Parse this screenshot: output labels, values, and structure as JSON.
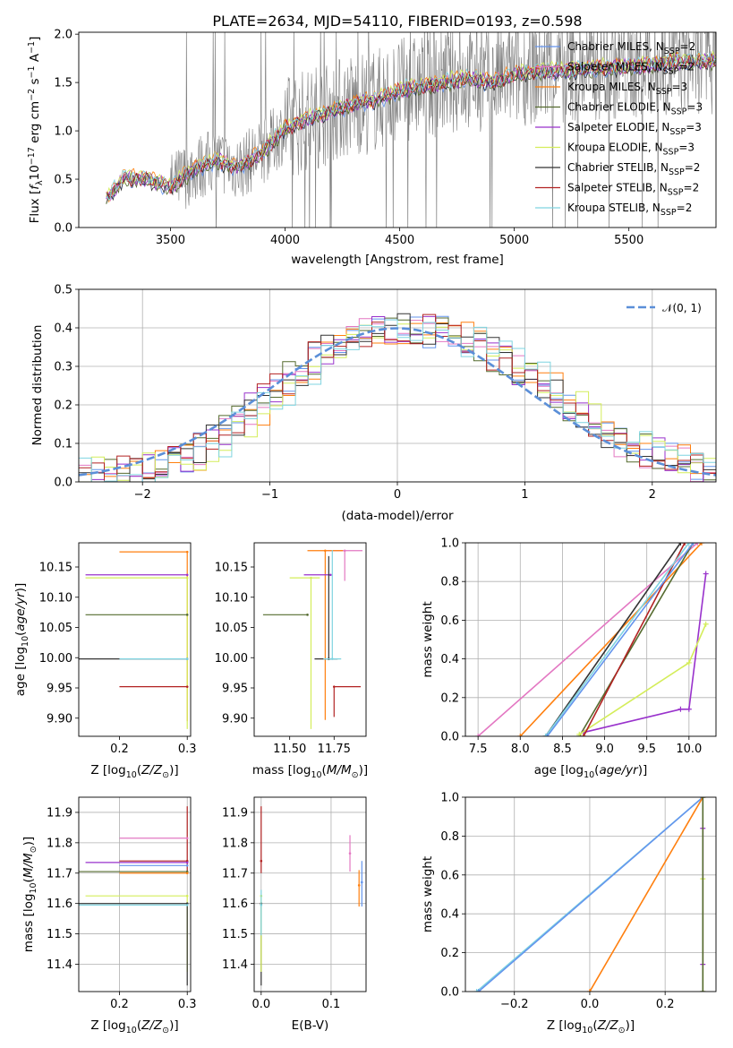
{
  "title": "PLATE=2634, MJD=54110, FIBERID=0193, z=0.598",
  "colors": {
    "Chabrier MILES": "#6495ed",
    "Salpeter MILES": "#e377c2",
    "Kroupa MILES": "#ff7f0e",
    "Chabrier ELODIE": "#556b2f",
    "Salpeter ELODIE": "#9932cc",
    "Kroupa ELODIE": "#d4ed5a",
    "Chabrier STELIB": "#333333",
    "Salpeter STELIB": "#b22222",
    "Kroupa STELIB": "#7fd4e0",
    "data": "#7f7f7f",
    "gauss": "#5b8fd8"
  },
  "chart_data": [
    {
      "id": "spectrum",
      "type": "line",
      "title": "PLATE=2634, MJD=54110, FIBERID=0193, z=0.598",
      "xlabel": "wavelength [Angstrom, rest frame]",
      "ylabel": "Flux [f_λ 10^{-17} erg cm^{-2} s^{-1} A^{-1}]",
      "xlim": [
        3100,
        5880
      ],
      "ylim": [
        0,
        2.02
      ],
      "xticks": [
        3500,
        4000,
        4500,
        5000,
        5500
      ],
      "yticks": [
        0.0,
        0.5,
        1.0,
        1.5,
        2.0
      ],
      "ytick_labels": [
        "0.0",
        "0.5",
        "1.0",
        "1.5",
        "2.0"
      ],
      "legend_loc": "upper right",
      "legend": [
        "Chabrier MILES, N_SSP=2",
        "Salpeter MILES, N_SSP=2",
        "Kroupa MILES, N_SSP=3",
        "Chabrier ELODIE, N_SSP=3",
        "Salpeter ELODIE, N_SSP=3",
        "Kroupa ELODIE, N_SSP=3",
        "Chabrier STELIB, N_SSP=2",
        "Salpeter STELIB, N_SSP=2",
        "Kroupa STELIB, N_SSP=2"
      ],
      "model_curve": {
        "x": [
          3220,
          3300,
          3400,
          3500,
          3600,
          3700,
          3800,
          3900,
          4000,
          4100,
          4200,
          4300,
          4400,
          4500,
          4600,
          4700,
          4800,
          4900,
          5000,
          5100,
          5200,
          5300,
          5400,
          5500,
          5600,
          5700
        ],
        "y": [
          0.3,
          0.52,
          0.5,
          0.42,
          0.6,
          0.7,
          0.62,
          0.78,
          1.02,
          1.12,
          1.2,
          1.28,
          1.32,
          1.42,
          1.46,
          1.5,
          1.55,
          1.5,
          1.58,
          1.62,
          1.62,
          1.64,
          1.65,
          1.66,
          1.68,
          1.72
        ]
      }
    },
    {
      "id": "residuals",
      "type": "line",
      "xlabel": "(data-model)/error",
      "ylabel": "Normed distribution",
      "xlim": [
        -2.5,
        2.5
      ],
      "ylim": [
        0,
        0.5
      ],
      "xticks": [
        -2,
        -1,
        0,
        1,
        2
      ],
      "xtick_labels": [
        "−2",
        "−1",
        "0",
        "1",
        "2"
      ],
      "yticks": [
        0.0,
        0.1,
        0.2,
        0.3,
        0.4,
        0.5
      ],
      "ytick_labels": [
        "0.0",
        "0.1",
        "0.2",
        "0.3",
        "0.4",
        "0.5"
      ],
      "legend": [
        "𝒩(0, 1)"
      ],
      "hist_bins": [
        -2.5,
        -2.4,
        -2.3,
        -2.2,
        -2.1,
        -2.0,
        -1.9,
        -1.8,
        -1.7,
        -1.6,
        -1.5,
        -1.4,
        -1.3,
        -1.2,
        -1.1,
        -1.0,
        -0.9,
        -0.8,
        -0.7,
        -0.6,
        -0.5,
        -0.4,
        -0.3,
        -0.2,
        -0.1,
        0.0,
        0.1,
        0.2,
        0.3,
        0.4,
        0.5,
        0.6,
        0.7,
        0.8,
        0.9,
        1.0,
        1.1,
        1.2,
        1.3,
        1.4,
        1.5,
        1.6,
        1.7,
        1.8,
        1.9,
        2.0,
        2.1,
        2.2,
        2.3,
        2.4
      ],
      "hist_ref": [
        0.02,
        0.02,
        0.03,
        0.03,
        0.04,
        0.05,
        0.06,
        0.07,
        0.09,
        0.11,
        0.14,
        0.16,
        0.19,
        0.21,
        0.24,
        0.27,
        0.29,
        0.32,
        0.34,
        0.36,
        0.37,
        0.39,
        0.39,
        0.4,
        0.4,
        0.4,
        0.39,
        0.39,
        0.37,
        0.36,
        0.35,
        0.33,
        0.31,
        0.29,
        0.27,
        0.24,
        0.22,
        0.19,
        0.17,
        0.15,
        0.13,
        0.11,
        0.09,
        0.08,
        0.07,
        0.06,
        0.05,
        0.04,
        0.03,
        0.03
      ]
    },
    {
      "id": "age-vs-Z",
      "type": "scatter",
      "xlabel": "Z [log10(Z/Z⊙)]",
      "ylabel": "age  [log10(age/yr)]",
      "xlim": [
        0.14,
        0.305
      ],
      "ylim": [
        9.87,
        10.19
      ],
      "xticks": [
        0.2,
        0.3
      ],
      "xtick_labels": [
        "0.2",
        "0.3"
      ],
      "yticks": [
        9.9,
        9.95,
        10.0,
        10.05,
        10.1,
        10.15
      ],
      "ytick_labels": [
        "9.90",
        "9.95",
        "10.00",
        "10.05",
        "10.10",
        "10.15"
      ],
      "points": [
        {
          "series": "Kroupa MILES",
          "x": 0.3,
          "y": 10.175,
          "xerr": [
            0.1,
            0.0
          ],
          "yerr": [
            0.28,
            0.0
          ]
        },
        {
          "series": "Salpeter ELODIE",
          "x": 0.3,
          "y": 10.137,
          "xerr": [
            0.15,
            0.0
          ],
          "yerr": [
            0.0,
            0.0
          ]
        },
        {
          "series": "Kroupa ELODIE",
          "x": 0.3,
          "y": 10.132,
          "xerr": [
            0.15,
            0.0
          ],
          "yerr": [
            0.25,
            0.0
          ]
        },
        {
          "series": "Chabrier ELODIE",
          "x": 0.3,
          "y": 10.071,
          "xerr": [
            0.15,
            0.0
          ],
          "yerr": [
            0.0,
            0.0
          ]
        },
        {
          "series": "Chabrier STELIB",
          "x": 0.3,
          "y": 9.998,
          "xerr": [
            0.16,
            0.0
          ],
          "yerr": [
            0.0,
            0.0
          ]
        },
        {
          "series": "Kroupa STELIB",
          "x": 0.3,
          "y": 9.998,
          "xerr": [
            0.1,
            0.0
          ],
          "yerr": [
            0.0,
            0.0
          ]
        },
        {
          "series": "Salpeter STELIB",
          "x": 0.3,
          "y": 9.952,
          "xerr": [
            0.1,
            0.0
          ],
          "yerr": [
            0.0,
            0.0
          ]
        }
      ]
    },
    {
      "id": "age-vs-mass",
      "type": "scatter",
      "xlabel": "mass [log10(M/M⊙)]",
      "ylabel": "",
      "xlim": [
        11.3,
        11.93
      ],
      "ylim": [
        9.87,
        10.19
      ],
      "xticks": [
        11.5,
        11.75
      ],
      "xtick_labels": [
        "11.50",
        "11.75"
      ],
      "yticks": [
        9.9,
        9.95,
        10.0,
        10.05,
        10.1,
        10.15
      ],
      "ytick_labels": [
        "9.90",
        "9.95",
        "10.00",
        "10.05",
        "10.10",
        "10.15"
      ],
      "points": [
        {
          "series": "Salpeter MILES",
          "x": 11.81,
          "y": 10.177,
          "xerr": [
            0.1,
            0.1
          ],
          "yerr": [
            0.05,
            0.0
          ]
        },
        {
          "series": "Kroupa MILES",
          "x": 11.7,
          "y": 10.177,
          "xerr": [
            0.1,
            0.1
          ],
          "yerr": [
            0.28,
            0.0
          ]
        },
        {
          "series": "Salpeter ELODIE",
          "x": 11.73,
          "y": 10.137,
          "xerr": [
            0.15,
            0.0
          ],
          "yerr": [
            0.0,
            0.0
          ]
        },
        {
          "series": "Kroupa ELODIE",
          "x": 11.62,
          "y": 10.132,
          "xerr": [
            0.12,
            0.05
          ],
          "yerr": [
            0.25,
            0.0
          ]
        },
        {
          "series": "Chabrier ELODIE",
          "x": 11.6,
          "y": 10.071,
          "xerr": [
            0.25,
            0.0
          ],
          "yerr": [
            0.0,
            0.0
          ]
        },
        {
          "series": "Chabrier STELIB",
          "x": 11.72,
          "y": 9.998,
          "xerr": [
            0.08,
            0.05
          ],
          "yerr": [
            0.0,
            0.17
          ]
        },
        {
          "series": "Kroupa STELIB",
          "x": 11.74,
          "y": 9.998,
          "xerr": [
            0.05,
            0.05
          ],
          "yerr": [
            0.0,
            0.18
          ]
        },
        {
          "series": "Salpeter STELIB",
          "x": 11.75,
          "y": 9.952,
          "xerr": [
            0.0,
            0.15
          ],
          "yerr": [
            0.05,
            0.0
          ]
        }
      ]
    },
    {
      "id": "mass-weight-vs-age",
      "type": "line",
      "xlabel": "age  [log10(age/yr)]",
      "ylabel": "mass weight",
      "xlim": [
        7.35,
        10.32
      ],
      "ylim": [
        0,
        1
      ],
      "xticks": [
        7.5,
        8.0,
        8.5,
        9.0,
        9.5,
        10.0
      ],
      "xtick_labels": [
        "7.5",
        "8.0",
        "8.5",
        "9.0",
        "9.5",
        "10.0"
      ],
      "yticks": [
        0.0,
        0.2,
        0.4,
        0.6,
        0.8,
        1.0
      ],
      "ytick_labels": [
        "0.0",
        "0.2",
        "0.4",
        "0.6",
        "0.8",
        "1.0"
      ],
      "series": [
        {
          "name": "Salpeter MILES",
          "x": [
            7.5,
            10.1
          ],
          "y": [
            0.0,
            1.0
          ]
        },
        {
          "name": "Kroupa MILES",
          "x": [
            8.0,
            10.15
          ],
          "y": [
            0.0,
            1.0
          ]
        },
        {
          "name": "Chabrier ELODIE",
          "x": [
            8.7,
            10.05
          ],
          "y": [
            0.0,
            1.0
          ]
        },
        {
          "name": "Salpeter ELODIE",
          "x": [
            8.75,
            9.9,
            10.0,
            10.2
          ],
          "y": [
            0.02,
            0.14,
            0.14,
            0.84
          ]
        },
        {
          "name": "Kroupa ELODIE",
          "x": [
            8.7,
            10.0,
            10.2
          ],
          "y": [
            0.01,
            0.38,
            0.58
          ]
        },
        {
          "name": "Chabrier STELIB",
          "x": [
            8.3,
            9.9
          ],
          "y": [
            0.0,
            1.0
          ]
        },
        {
          "name": "Salpeter STELIB",
          "x": [
            8.75,
            9.95
          ],
          "y": [
            0.0,
            1.0
          ]
        },
        {
          "name": "Kroupa STELIB",
          "x": [
            8.3,
            10.0
          ],
          "y": [
            0.0,
            1.0
          ]
        },
        {
          "name": "Chabrier MILES",
          "x": [
            8.32,
            10.05
          ],
          "y": [
            0.0,
            1.0
          ]
        }
      ]
    },
    {
      "id": "mass-vs-Z",
      "type": "scatter",
      "xlabel": "Z [log10(Z/Z⊙)]",
      "ylabel": "mass [log10(M/M⊙)]",
      "xlim": [
        0.14,
        0.305
      ],
      "ylim": [
        11.31,
        11.95
      ],
      "xticks": [
        0.2,
        0.3
      ],
      "xtick_labels": [
        "0.2",
        "0.3"
      ],
      "yticks": [
        11.4,
        11.5,
        11.6,
        11.7,
        11.8,
        11.9
      ],
      "ytick_labels": [
        "11.4",
        "11.5",
        "11.6",
        "11.7",
        "11.8",
        "11.9"
      ],
      "points": [
        {
          "series": "Salpeter STELIB",
          "x": 0.3,
          "y": 11.74,
          "xerr": [
            0.1,
            0.0
          ],
          "yerr": [
            0.04,
            0.18
          ]
        },
        {
          "series": "Salpeter MILES",
          "x": 0.3,
          "y": 11.815,
          "xerr": [
            0.1,
            0.0
          ],
          "yerr": [
            0.0,
            0.0
          ]
        },
        {
          "series": "Salpeter ELODIE",
          "x": 0.3,
          "y": 11.735,
          "xerr": [
            0.15,
            0.0
          ],
          "yerr": [
            0.0,
            0.0
          ]
        },
        {
          "series": "Chabrier MILES",
          "x": 0.3,
          "y": 11.725,
          "xerr": [
            0.1,
            0.0
          ],
          "yerr": [
            0.0,
            0.0
          ]
        },
        {
          "series": "Chabrier ELODIE",
          "x": 0.3,
          "y": 11.705,
          "xerr": [
            0.16,
            0.0
          ],
          "yerr": [
            0.0,
            0.0
          ]
        },
        {
          "series": "Kroupa MILES",
          "x": 0.3,
          "y": 11.7,
          "xerr": [
            0.1,
            0.0
          ],
          "yerr": [
            0.0,
            0.0
          ]
        },
        {
          "series": "Kroupa ELODIE",
          "x": 0.3,
          "y": 11.625,
          "xerr": [
            0.15,
            0.0
          ],
          "yerr": [
            0.25,
            0.0
          ]
        },
        {
          "series": "Chabrier STELIB",
          "x": 0.3,
          "y": 11.6,
          "xerr": [
            0.16,
            0.0
          ],
          "yerr": [
            0.27,
            0.0
          ]
        },
        {
          "series": "Kroupa STELIB",
          "x": 0.3,
          "y": 11.595,
          "xerr": [
            0.16,
            0.0
          ],
          "yerr": [
            0.0,
            0.0
          ]
        }
      ]
    },
    {
      "id": "mass-vs-ebv",
      "type": "scatter",
      "xlabel": "E(B-V)",
      "ylabel": "",
      "xlim": [
        -0.01,
        0.15
      ],
      "ylim": [
        11.31,
        11.95
      ],
      "xticks": [
        0.0,
        0.1
      ],
      "xtick_labels": [
        "0.0",
        "0.1"
      ],
      "yticks": [
        11.4,
        11.5,
        11.6,
        11.7,
        11.8,
        11.9
      ],
      "ytick_labels": [
        "11.4",
        "11.5",
        "11.6",
        "11.7",
        "11.8",
        "11.9"
      ],
      "points": [
        {
          "series": "Salpeter STELIB",
          "x": 0.0,
          "y": 11.74,
          "yerr": [
            0.04,
            0.18
          ]
        },
        {
          "series": "Chabrier STELIB",
          "x": 0.0,
          "y": 11.6,
          "yerr": [
            0.27,
            0.0
          ]
        },
        {
          "series": "Kroupa ELODIE",
          "x": 0.0,
          "y": 11.625,
          "yerr": [
            0.25,
            0.0
          ]
        },
        {
          "series": "Kroupa STELIB",
          "x": 0.0,
          "y": 11.595,
          "yerr": [
            0.1,
            0.05
          ]
        },
        {
          "series": "Salpeter MILES",
          "x": 0.127,
          "y": 11.765,
          "yerr": [
            0.06,
            0.06
          ]
        },
        {
          "series": "Kroupa MILES",
          "x": 0.14,
          "y": 11.66,
          "yerr": [
            0.07,
            0.05
          ]
        },
        {
          "series": "Chabrier MILES",
          "x": 0.144,
          "y": 11.67,
          "yerr": [
            0.08,
            0.07
          ]
        }
      ]
    },
    {
      "id": "mass-weight-vs-Z",
      "type": "line",
      "xlabel": "Z [log10(Z/Z⊙)]",
      "ylabel": "mass weight",
      "xlim": [
        -0.33,
        0.335
      ],
      "ylim": [
        0,
        1
      ],
      "xticks": [
        -0.2,
        0.0,
        0.2
      ],
      "xtick_labels": [
        "−0.2",
        "0.0",
        "0.2"
      ],
      "yticks": [
        0.0,
        0.2,
        0.4,
        0.6,
        0.8,
        1.0
      ],
      "ytick_labels": [
        "0.0",
        "0.2",
        "0.4",
        "0.6",
        "0.8",
        "1.0"
      ],
      "series": [
        {
          "name": "Kroupa STELIB",
          "x": [
            -0.3,
            0.3
          ],
          "y": [
            0.0,
            1.0
          ]
        },
        {
          "name": "Chabrier MILES",
          "x": [
            -0.295,
            0.3
          ],
          "y": [
            0.0,
            1.0
          ]
        },
        {
          "name": "Kroupa MILES",
          "x": [
            0.0,
            0.3
          ],
          "y": [
            0.0,
            1.0
          ]
        },
        {
          "name": "Salpeter ELODIE",
          "x": [
            0.3,
            0.3
          ],
          "y": [
            0.14,
            0.84
          ]
        },
        {
          "name": "Kroupa ELODIE",
          "x": [
            0.3,
            0.3
          ],
          "y": [
            0.0,
            0.58
          ]
        },
        {
          "name": "Chabrier ELODIE",
          "x": [
            0.3,
            0.3
          ],
          "y": [
            0.0,
            1.0
          ]
        }
      ]
    }
  ]
}
